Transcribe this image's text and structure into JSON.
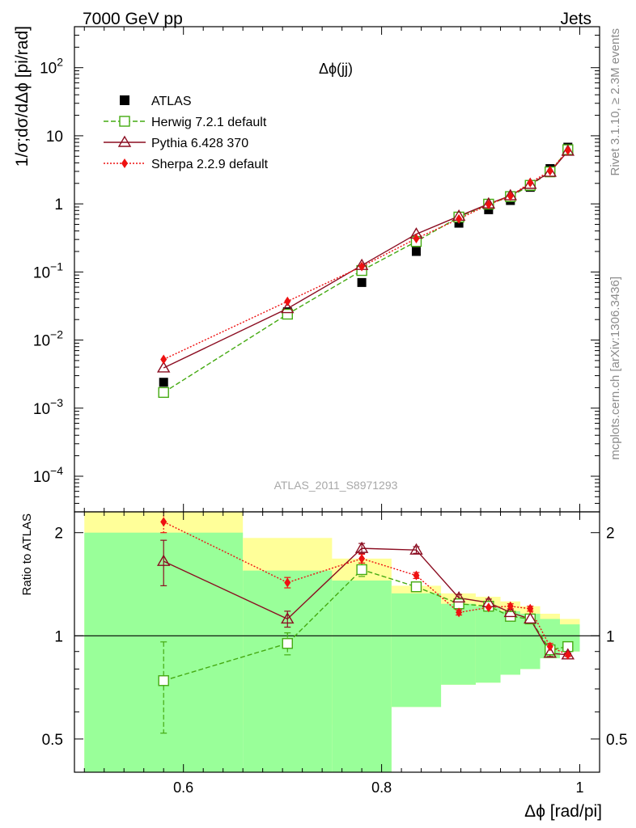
{
  "header": {
    "left": "7000 GeV pp",
    "right": "Jets"
  },
  "side": {
    "top": "Rivet 3.1.10, ≥ 2.3M events",
    "bottom": "mcplots.cern.ch [arXiv:1306.3436]"
  },
  "chart_data": {
    "type": "line",
    "title": "Δϕ(jj)",
    "analysis": "ATLAS_2011_S8971293",
    "xlabel": "Δϕ [rad/pi]",
    "ylabel_main": "1/σ;dσ/dΔϕ [pi/rad]",
    "ylabel_ratio": "Ratio to ATLAS",
    "xlim": [
      0.49,
      1.02
    ],
    "ylim_main": [
      3e-05,
      400
    ],
    "ylim_ratio": [
      0.4,
      2.3
    ],
    "xscale": "linear",
    "yscale_main": "log",
    "yscale_ratio": "log",
    "x_ticks": [
      0.6,
      0.8,
      1.0
    ],
    "x_tick_labels": [
      "0.6",
      "0.8",
      "1"
    ],
    "main_y_ticks": [
      {
        "v": 0.0001,
        "m": "10",
        "e": "−4"
      },
      {
        "v": 0.001,
        "m": "10",
        "e": "−3"
      },
      {
        "v": 0.01,
        "m": "10",
        "e": "−2"
      },
      {
        "v": 0.1,
        "m": "10",
        "e": "−1"
      },
      {
        "v": 1,
        "m": "1",
        "e": ""
      },
      {
        "v": 10,
        "m": "10",
        "e": ""
      },
      {
        "v": 100,
        "m": "10",
        "e": "2"
      }
    ],
    "ratio_y_ticks": [
      {
        "v": 0.5,
        "label": "0.5"
      },
      {
        "v": 1,
        "label": "1"
      },
      {
        "v": 2,
        "label": "2"
      }
    ],
    "legend_position": "top-left",
    "bins": [
      {
        "lo": 0.5,
        "hi": 0.66
      },
      {
        "lo": 0.66,
        "hi": 0.75
      },
      {
        "lo": 0.75,
        "hi": 0.81
      },
      {
        "lo": 0.81,
        "hi": 0.86
      },
      {
        "lo": 0.86,
        "hi": 0.895
      },
      {
        "lo": 0.895,
        "hi": 0.92
      },
      {
        "lo": 0.92,
        "hi": 0.94
      },
      {
        "lo": 0.94,
        "hi": 0.96
      },
      {
        "lo": 0.96,
        "hi": 0.98
      },
      {
        "lo": 0.98,
        "hi": 1.0
      }
    ],
    "band_stat_lo": [
      0.4,
      0.4,
      0.4,
      0.62,
      0.72,
      0.73,
      0.77,
      0.8,
      0.86,
      0.9
    ],
    "band_stat_hi": [
      2.0,
      1.55,
      1.45,
      1.33,
      1.24,
      1.22,
      1.18,
      1.16,
      1.12,
      1.08
    ],
    "band_tot_lo": [
      0.4,
      0.55,
      0.4,
      0.62,
      0.72,
      0.73,
      0.77,
      0.8,
      0.86,
      0.9
    ],
    "band_tot_hi": [
      2.5,
      1.93,
      1.68,
      1.4,
      1.33,
      1.3,
      1.26,
      1.22,
      1.16,
      1.12
    ],
    "x": [
      0.58,
      0.705,
      0.78,
      0.835,
      0.878,
      0.908,
      0.93,
      0.95,
      0.97,
      0.988
    ],
    "data": {
      "name": "ATLAS",
      "color": "#000000",
      "values": [
        0.0024,
        0.026,
        0.07,
        0.2,
        0.52,
        0.82,
        1.12,
        1.75,
        3.3,
        6.8
      ]
    },
    "series": [
      {
        "name": "Herwig 7.2.1 default",
        "color": "#44aa11",
        "marker": "open-square",
        "dash": "6,3",
        "values": [
          0.0017,
          0.024,
          0.105,
          0.28,
          0.64,
          0.99,
          1.28,
          1.87,
          2.95,
          6.25
        ],
        "ratio": [
          0.74,
          0.95,
          1.56,
          1.39,
          1.24,
          1.22,
          1.14,
          1.12,
          0.91,
          0.93
        ],
        "ratio_err": [
          0.22,
          0.07,
          0.07,
          0.04,
          0.03,
          0.02,
          0.02,
          0.02,
          0.02,
          0.01
        ]
      },
      {
        "name": "Pythia 6.428 370",
        "color": "#8b0d21",
        "marker": "open-triangle",
        "dash": "",
        "values": [
          0.0039,
          0.029,
          0.125,
          0.36,
          0.66,
          1.0,
          1.32,
          1.94,
          2.92,
          5.95
        ],
        "ratio": [
          1.65,
          1.12,
          1.8,
          1.78,
          1.29,
          1.25,
          1.17,
          1.12,
          0.89,
          0.88
        ],
        "ratio_err": [
          0.25,
          0.06,
          0.06,
          0.04,
          0.03,
          0.03,
          0.02,
          0.02,
          0.02,
          0.01
        ]
      },
      {
        "name": "Sherpa 2.2.9 default",
        "color": "#ee1111",
        "marker": "diamond",
        "dash": "2,2",
        "values": [
          0.0052,
          0.037,
          0.12,
          0.31,
          0.6,
          0.98,
          1.3,
          2.05,
          3.05,
          6.1
        ],
        "ratio": [
          2.15,
          1.43,
          1.68,
          1.5,
          1.17,
          1.21,
          1.22,
          1.2,
          0.93,
          0.88
        ],
        "ratio_err": [
          0.15,
          0.05,
          0.05,
          0.03,
          0.02,
          0.02,
          0.02,
          0.02,
          0.02,
          0.01
        ]
      }
    ],
    "colors": {
      "band_yellow": "#ffff99",
      "band_green": "#99ff99"
    }
  }
}
